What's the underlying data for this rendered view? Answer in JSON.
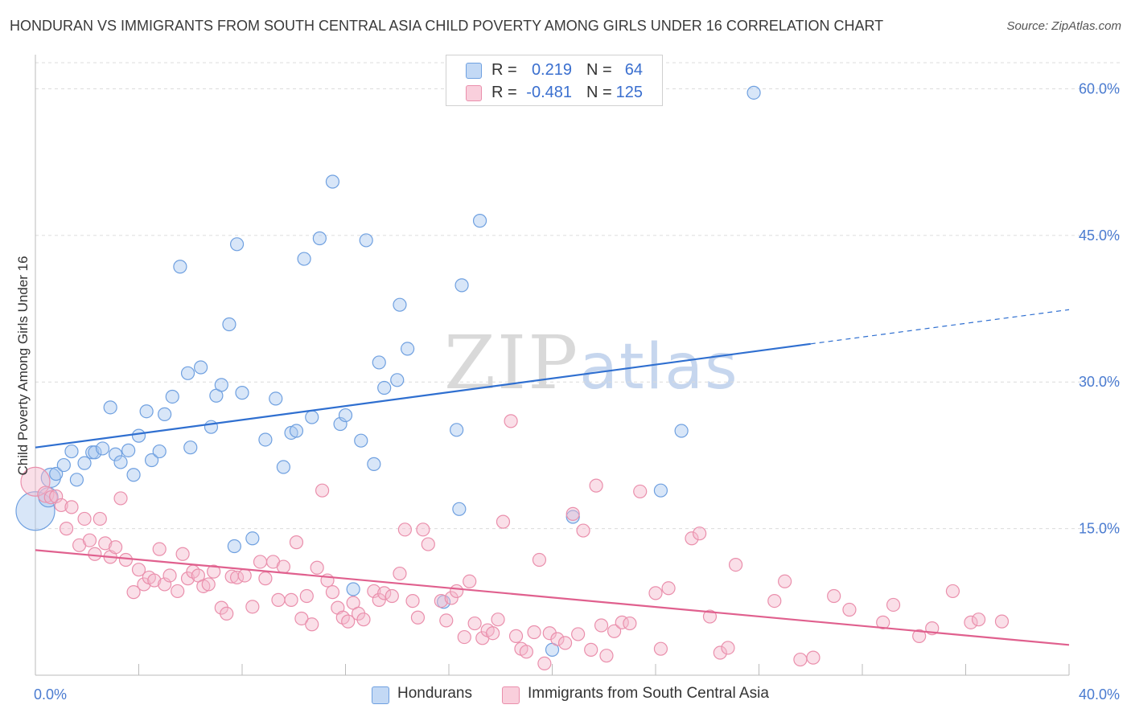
{
  "header": {
    "title": "HONDURAN VS IMMIGRANTS FROM SOUTH CENTRAL ASIA CHILD POVERTY AMONG GIRLS UNDER 16 CORRELATION CHART",
    "source": "Source: ZipAtlas.com"
  },
  "watermark": {
    "zip": "ZIP",
    "atlas": "atlas"
  },
  "legend_top": {
    "rows": [
      {
        "r_label": "R =",
        "r_value": "0.219",
        "n_label": "N =",
        "n_value": "64",
        "color": "#a9c8f0"
      },
      {
        "r_label": "R =",
        "r_value": "-0.481",
        "n_label": "N =",
        "n_value": "125",
        "color": "#f5b8cb"
      }
    ]
  },
  "legend_bottom": {
    "items": [
      {
        "label": "Hondurans",
        "color": "#a9c8f0"
      },
      {
        "label": "Immigrants from South Central Asia",
        "color": "#f5b8cb"
      }
    ]
  },
  "chart_data": {
    "type": "scatter",
    "title": "HONDURAN VS IMMIGRANTS FROM SOUTH CENTRAL ASIA CHILD POVERTY AMONG GIRLS UNDER 16 CORRELATION CHART",
    "xlabel": "",
    "ylabel": "Child Poverty Among Girls Under 16",
    "xlim": [
      0,
      40
    ],
    "ylim": [
      0,
      63
    ],
    "x_ticks": [
      0,
      4,
      8,
      12,
      16,
      20,
      24,
      28,
      32,
      36,
      40
    ],
    "x_tick_labels": {
      "0": "0.0%",
      "40": "40.0%"
    },
    "y_ticks": [
      15,
      30,
      45,
      60
    ],
    "y_tick_labels": [
      "15.0%",
      "30.0%",
      "45.0%",
      "60.0%"
    ],
    "grid": true,
    "legend": "top-center",
    "series": [
      {
        "name": "Hondurans",
        "color": "#6fa0e0",
        "fill": "#a9c8f0",
        "trend": {
          "x0": 0,
          "y0": 23.3,
          "x1": 30,
          "y1": 33.9,
          "dashed_to_x": 40,
          "dashed_to_y": 37.4,
          "color": "#2f6fd0"
        },
        "points": [
          [
            0.0,
            16.8,
            24
          ],
          [
            0.5,
            18.2,
            12
          ],
          [
            0.6,
            20.2,
            12
          ],
          [
            0.8,
            20.6,
            8
          ],
          [
            1.1,
            21.5,
            8
          ],
          [
            1.4,
            22.9,
            8
          ],
          [
            1.6,
            20.0,
            8
          ],
          [
            1.9,
            21.7,
            8
          ],
          [
            2.2,
            22.8,
            8
          ],
          [
            2.3,
            22.8,
            8
          ],
          [
            2.6,
            23.2,
            8
          ],
          [
            2.9,
            27.4,
            8
          ],
          [
            3.1,
            22.6,
            8
          ],
          [
            3.3,
            21.8,
            8
          ],
          [
            3.6,
            23.0,
            8
          ],
          [
            3.8,
            20.5,
            8
          ],
          [
            4.0,
            24.5,
            8
          ],
          [
            4.3,
            27.0,
            8
          ],
          [
            4.5,
            22.0,
            8
          ],
          [
            4.8,
            22.9,
            8
          ],
          [
            5.0,
            26.7,
            8
          ],
          [
            5.3,
            28.5,
            8
          ],
          [
            5.6,
            41.8,
            8
          ],
          [
            5.9,
            30.9,
            8
          ],
          [
            6.0,
            23.3,
            8
          ],
          [
            6.4,
            31.5,
            8
          ],
          [
            6.8,
            25.4,
            8
          ],
          [
            7.0,
            28.6,
            8
          ],
          [
            7.2,
            29.7,
            8
          ],
          [
            7.5,
            35.9,
            8
          ],
          [
            7.7,
            13.2,
            8
          ],
          [
            7.8,
            44.1,
            8
          ],
          [
            8.0,
            28.9,
            8
          ],
          [
            8.4,
            14.0,
            8
          ],
          [
            8.9,
            24.1,
            8
          ],
          [
            9.3,
            28.3,
            8
          ],
          [
            9.6,
            21.3,
            8
          ],
          [
            9.9,
            24.8,
            8
          ],
          [
            10.1,
            25.0,
            8
          ],
          [
            10.4,
            42.6,
            8
          ],
          [
            10.7,
            26.4,
            8
          ],
          [
            11.0,
            44.7,
            8
          ],
          [
            11.5,
            50.5,
            8
          ],
          [
            11.8,
            25.7,
            8
          ],
          [
            12.0,
            26.6,
            8
          ],
          [
            12.3,
            8.8,
            8
          ],
          [
            12.6,
            24.0,
            8
          ],
          [
            12.8,
            44.5,
            8
          ],
          [
            13.1,
            21.6,
            8
          ],
          [
            13.3,
            32.0,
            8
          ],
          [
            13.5,
            29.4,
            8
          ],
          [
            14.0,
            30.2,
            8
          ],
          [
            14.1,
            37.9,
            8
          ],
          [
            14.4,
            33.4,
            8
          ],
          [
            15.8,
            7.5,
            8
          ],
          [
            16.3,
            25.1,
            8
          ],
          [
            16.4,
            17.0,
            8
          ],
          [
            16.5,
            39.9,
            8
          ],
          [
            17.2,
            46.5,
            8
          ],
          [
            20.0,
            2.6,
            8
          ],
          [
            20.8,
            16.2,
            8
          ],
          [
            24.2,
            18.9,
            8
          ],
          [
            25.0,
            25.0,
            8
          ],
          [
            27.8,
            59.6,
            8
          ]
        ]
      },
      {
        "name": "Immigrants from South Central Asia",
        "color": "#ea8fac",
        "fill": "#f5b8cb",
        "trend": {
          "x0": 0,
          "y0": 12.8,
          "x1": 40,
          "y1": 3.1,
          "color": "#e0608e"
        },
        "points": [
          [
            0.0,
            19.8,
            18
          ],
          [
            0.4,
            18.5,
            10
          ],
          [
            0.6,
            18.2,
            8
          ],
          [
            0.8,
            18.3,
            8
          ],
          [
            1.0,
            17.4,
            8
          ],
          [
            1.2,
            15.0,
            8
          ],
          [
            1.4,
            17.2,
            8
          ],
          [
            1.7,
            13.3,
            8
          ],
          [
            1.9,
            16.0,
            8
          ],
          [
            2.1,
            13.8,
            8
          ],
          [
            2.3,
            12.4,
            8
          ],
          [
            2.5,
            16.0,
            8
          ],
          [
            2.7,
            13.5,
            8
          ],
          [
            2.9,
            12.1,
            8
          ],
          [
            3.1,
            13.1,
            8
          ],
          [
            3.3,
            18.1,
            8
          ],
          [
            3.5,
            11.8,
            8
          ],
          [
            3.8,
            8.5,
            8
          ],
          [
            4.0,
            10.8,
            8
          ],
          [
            4.2,
            9.3,
            8
          ],
          [
            4.4,
            10.0,
            8
          ],
          [
            4.6,
            9.7,
            8
          ],
          [
            4.8,
            12.9,
            8
          ],
          [
            5.0,
            9.3,
            8
          ],
          [
            5.2,
            10.2,
            8
          ],
          [
            5.5,
            8.6,
            8
          ],
          [
            5.7,
            12.4,
            8
          ],
          [
            5.9,
            9.9,
            8
          ],
          [
            6.1,
            10.6,
            8
          ],
          [
            6.3,
            10.2,
            8
          ],
          [
            6.5,
            9.1,
            8
          ],
          [
            6.7,
            9.3,
            8
          ],
          [
            6.9,
            10.6,
            8
          ],
          [
            7.2,
            6.9,
            8
          ],
          [
            7.4,
            6.3,
            8
          ],
          [
            7.6,
            10.1,
            8
          ],
          [
            7.8,
            10.0,
            8
          ],
          [
            8.1,
            10.2,
            8
          ],
          [
            8.4,
            7.0,
            8
          ],
          [
            8.7,
            11.6,
            8
          ],
          [
            8.9,
            9.9,
            8
          ],
          [
            9.2,
            11.6,
            8
          ],
          [
            9.4,
            7.7,
            8
          ],
          [
            9.6,
            11.1,
            8
          ],
          [
            9.9,
            7.7,
            8
          ],
          [
            10.1,
            13.6,
            8
          ],
          [
            10.3,
            5.8,
            8
          ],
          [
            10.5,
            8.1,
            8
          ],
          [
            10.7,
            5.2,
            8
          ],
          [
            10.9,
            11.0,
            8
          ],
          [
            11.1,
            18.9,
            8
          ],
          [
            11.3,
            9.7,
            8
          ],
          [
            11.5,
            8.5,
            8
          ],
          [
            11.7,
            6.9,
            8
          ],
          [
            11.9,
            5.9,
            8
          ],
          [
            12.1,
            5.5,
            8
          ],
          [
            12.3,
            7.4,
            8
          ],
          [
            12.5,
            6.3,
            8
          ],
          [
            12.7,
            5.7,
            8
          ],
          [
            13.1,
            8.6,
            8
          ],
          [
            13.3,
            7.7,
            8
          ],
          [
            13.5,
            8.4,
            8
          ],
          [
            13.8,
            8.1,
            8
          ],
          [
            14.1,
            10.4,
            8
          ],
          [
            14.3,
            14.9,
            8
          ],
          [
            14.6,
            7.6,
            8
          ],
          [
            14.8,
            5.9,
            8
          ],
          [
            15.0,
            14.9,
            8
          ],
          [
            15.2,
            13.4,
            8
          ],
          [
            15.7,
            7.6,
            8
          ],
          [
            15.9,
            5.6,
            8
          ],
          [
            16.1,
            7.9,
            8
          ],
          [
            16.3,
            8.6,
            8
          ],
          [
            16.6,
            3.9,
            8
          ],
          [
            16.8,
            9.6,
            8
          ],
          [
            17.0,
            5.3,
            8
          ],
          [
            17.3,
            3.8,
            8
          ],
          [
            17.5,
            4.6,
            8
          ],
          [
            17.7,
            4.3,
            8
          ],
          [
            17.9,
            5.7,
            8
          ],
          [
            18.1,
            15.7,
            8
          ],
          [
            18.4,
            26.0,
            8
          ],
          [
            18.6,
            4.0,
            8
          ],
          [
            18.8,
            2.7,
            8
          ],
          [
            19.0,
            2.4,
            8
          ],
          [
            19.3,
            4.4,
            8
          ],
          [
            19.5,
            11.8,
            8
          ],
          [
            19.7,
            1.2,
            8
          ],
          [
            19.9,
            4.3,
            8
          ],
          [
            20.2,
            3.7,
            8
          ],
          [
            20.5,
            3.3,
            8
          ],
          [
            20.8,
            16.5,
            8
          ],
          [
            21.0,
            4.2,
            8
          ],
          [
            21.2,
            14.8,
            8
          ],
          [
            21.5,
            2.6,
            8
          ],
          [
            21.7,
            19.4,
            8
          ],
          [
            21.9,
            5.1,
            8
          ],
          [
            22.1,
            2.0,
            8
          ],
          [
            22.4,
            4.5,
            8
          ],
          [
            22.7,
            5.4,
            8
          ],
          [
            23.0,
            5.3,
            8
          ],
          [
            23.4,
            18.8,
            8
          ],
          [
            24.0,
            8.4,
            8
          ],
          [
            24.2,
            2.7,
            8
          ],
          [
            24.5,
            8.9,
            8
          ],
          [
            25.4,
            14.0,
            8
          ],
          [
            25.7,
            14.5,
            8
          ],
          [
            26.1,
            6.0,
            8
          ],
          [
            26.5,
            2.3,
            8
          ],
          [
            26.8,
            2.8,
            8
          ],
          [
            27.1,
            11.3,
            8
          ],
          [
            28.6,
            7.6,
            8
          ],
          [
            29.0,
            9.6,
            8
          ],
          [
            29.6,
            1.6,
            8
          ],
          [
            30.1,
            1.8,
            8
          ],
          [
            30.9,
            8.1,
            8
          ],
          [
            31.5,
            6.7,
            8
          ],
          [
            32.8,
            5.4,
            8
          ],
          [
            33.2,
            7.2,
            8
          ],
          [
            34.2,
            4.0,
            8
          ],
          [
            34.7,
            4.8,
            8
          ],
          [
            35.5,
            8.6,
            8
          ],
          [
            36.2,
            5.4,
            8
          ],
          [
            36.5,
            5.7,
            8
          ],
          [
            37.4,
            5.5,
            8
          ]
        ]
      }
    ]
  }
}
